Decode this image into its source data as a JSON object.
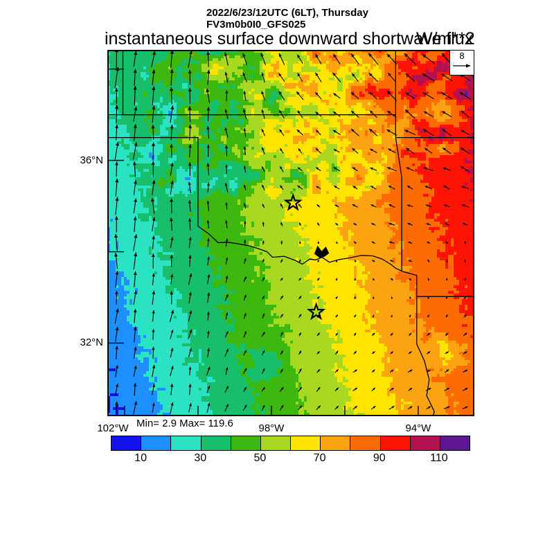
{
  "header": {
    "datetime_line": "2022/6/23/12UTC (6LT), Thursday",
    "model_line": "FV3m0b0I0_GFS025"
  },
  "title": {
    "main": "instantaneous surface downward shortwave flux",
    "units": "W/m**2"
  },
  "stats_label": "Min= 2.9 Max= 119.6",
  "chart_data": {
    "type": "heatmap",
    "title": "instantaneous surface downward shortwave flux",
    "units": "W/m**2",
    "datetime": "2022/6/23/12UTC (6LT), Thursday",
    "model": "FV3m0b0I0_GFS025",
    "min": 2.9,
    "max": 119.6,
    "extent": {
      "lon_min": -102.47,
      "lon_max": -92.47,
      "lat_min": 30.4,
      "lat_max": 38.42
    },
    "axis": {
      "lon_ticks": [
        {
          "lon": -102,
          "label": "102°W"
        },
        {
          "lon": -100,
          "label": ""
        },
        {
          "lon": -98,
          "label": "98°W"
        },
        {
          "lon": -96,
          "label": ""
        },
        {
          "lon": -94,
          "label": "94°W"
        }
      ],
      "lat_ticks": [
        {
          "lat": 38,
          "label": ""
        },
        {
          "lat": 36,
          "label": "36°N"
        },
        {
          "lat": 34,
          "label": ""
        },
        {
          "lat": 32,
          "label": "32°N"
        }
      ]
    },
    "colorbar": {
      "boundaries": [
        10,
        20,
        30,
        40,
        50,
        60,
        70,
        80,
        90,
        100,
        110
      ],
      "colors": [
        "#1212ef",
        "#1e8fff",
        "#2be3c3",
        "#17bf6a",
        "#3cb80f",
        "#a9d821",
        "#ffe400",
        "#fca311",
        "#fd6b03",
        "#fe1405",
        "#b3114f",
        "#5c1692"
      ],
      "tick_labels": [
        "10",
        "30",
        "50",
        "70",
        "90",
        "110"
      ]
    },
    "field": {
      "base": {
        "v0": 8.0,
        "per_deg_lon": 7.7,
        "per_deg_lat": 3.0
      },
      "edge_noise": 3.0,
      "cloud_regions": [
        {
          "name": "north-central-clouds",
          "lon0": -101.9,
          "lon1": -94.45,
          "lat0": 35.0,
          "lat1": 38.9,
          "bias": -7,
          "amp": 27,
          "seed": 7
        },
        {
          "name": "northeast-clouds",
          "lon0": -95.1,
          "lon1": -92.3,
          "lat0": 35.9,
          "lat1": 38.9,
          "bias": -8,
          "amp": 26,
          "seed": 13
        },
        {
          "name": "south-central-cloud",
          "lon0": -98.8,
          "lon1": -97.4,
          "lat0": 31.0,
          "lat1": 32.1,
          "bias": -13,
          "amp": 12,
          "seed": 3
        },
        {
          "name": "southeast-cloud",
          "lon0": -93.9,
          "lon1": -92.3,
          "lat0": 31.2,
          "lat1": 32.4,
          "bias": -14,
          "amp": 18,
          "seed": 5
        }
      ]
    },
    "wind": {
      "reference": 8,
      "reference_label": "8",
      "spacing_px": 26.5,
      "grid_cols": 6,
      "grid_rows": 6,
      "uv": [
        [
          [
            0.5,
            7.5
          ],
          [
            0.5,
            6.5
          ],
          [
            -1.5,
            4.5
          ],
          [
            -3,
            3.5
          ],
          [
            -4,
            4
          ],
          [
            -4.5,
            3.5
          ]
        ],
        [
          [
            0.5,
            7.0
          ],
          [
            0.2,
            6.0
          ],
          [
            -1,
            3.0
          ],
          [
            -2.5,
            2.0
          ],
          [
            -4,
            2.5
          ],
          [
            -4,
            2.5
          ]
        ],
        [
          [
            0.2,
            7.0
          ],
          [
            0.0,
            5.0
          ],
          [
            -0.8,
            2.0
          ],
          [
            -2,
            1.0
          ],
          [
            -2.5,
            1.0
          ],
          [
            -3,
            1.0
          ]
        ],
        [
          [
            0.2,
            6.5
          ],
          [
            0.3,
            4.5
          ],
          [
            0.8,
            1.5
          ],
          [
            0.8,
            0.8
          ],
          [
            -1.5,
            0.6
          ],
          [
            0.5,
            1.0
          ]
        ],
        [
          [
            0.5,
            6.0
          ],
          [
            0.8,
            4.0
          ],
          [
            1.0,
            2.0
          ],
          [
            1.0,
            1.2
          ],
          [
            1.0,
            1.0
          ],
          [
            1.5,
            1.0
          ]
        ],
        [
          [
            0.5,
            5.0
          ],
          [
            0.8,
            4.0
          ],
          [
            1.2,
            2.0
          ],
          [
            1.5,
            1.5
          ],
          [
            2.0,
            1.2
          ],
          [
            2.0,
            1.0
          ]
        ]
      ]
    },
    "geo": {
      "borders": [
        {
          "name": "kansas-south",
          "pts": [
            [
              -102.47,
              37.0
            ],
            [
              -94.615,
              37.0
            ]
          ]
        },
        {
          "name": "colorado-kansas",
          "pts": [
            [
              -102.045,
              38.42
            ],
            [
              -102.045,
              37.0
            ]
          ]
        },
        {
          "name": "texas-ok-panhandle",
          "pts": [
            [
              -102.47,
              36.5
            ],
            [
              -100.0,
              36.5
            ],
            [
              -100.0,
              34.56
            ]
          ]
        },
        {
          "name": "red-river",
          "pts": [
            [
              -100.0,
              34.56
            ],
            [
              -99.72,
              34.4
            ],
            [
              -99.45,
              34.2
            ],
            [
              -99.2,
              34.21
            ],
            [
              -98.95,
              34.18
            ],
            [
              -98.6,
              34.13
            ],
            [
              -98.4,
              34.08
            ],
            [
              -98.12,
              34.0
            ],
            [
              -97.97,
              33.88
            ],
            [
              -97.65,
              33.9
            ],
            [
              -97.35,
              33.81
            ],
            [
              -97.16,
              33.73
            ],
            [
              -96.95,
              33.84
            ],
            [
              -96.8,
              33.82
            ],
            [
              -96.62,
              33.88
            ],
            [
              -96.42,
              33.77
            ],
            [
              -96.15,
              33.83
            ],
            [
              -95.84,
              33.87
            ],
            [
              -95.55,
              33.92
            ],
            [
              -95.24,
              33.91
            ],
            [
              -94.98,
              33.84
            ],
            [
              -94.74,
              33.72
            ],
            [
              -94.615,
              33.64
            ],
            [
              -94.43,
              33.57
            ]
          ]
        },
        {
          "name": "kansas-missouri",
          "pts": [
            [
              -94.615,
              38.42
            ],
            [
              -94.615,
              36.5
            ]
          ]
        },
        {
          "name": "missouri-arkansas",
          "pts": [
            [
              -94.615,
              36.5
            ],
            [
              -92.47,
              36.5
            ]
          ]
        },
        {
          "name": "oklahoma-arkansas",
          "pts": [
            [
              -94.615,
              36.5
            ],
            [
              -94.45,
              35.64
            ],
            [
              -94.45,
              33.57
            ]
          ]
        },
        {
          "name": "texas-arkansas",
          "pts": [
            [
              -94.43,
              33.57
            ],
            [
              -94.04,
              33.48
            ],
            [
              -94.04,
              33.02
            ]
          ]
        },
        {
          "name": "arkansas-louisiana",
          "pts": [
            [
              -94.04,
              33.02
            ],
            [
              -92.47,
              33.02
            ]
          ]
        },
        {
          "name": "texas-louisiana",
          "pts": [
            [
              -94.04,
              33.02
            ],
            [
              -94.04,
              31.98
            ],
            [
              -93.83,
              31.61
            ],
            [
              -93.7,
              31.2
            ],
            [
              -93.77,
              30.85
            ],
            [
              -93.56,
              30.5
            ],
            [
              -93.6,
              30.4
            ]
          ]
        }
      ],
      "lake": {
        "name": "lake-texoma",
        "pts": [
          [
            -96.82,
            33.96
          ],
          [
            -96.74,
            34.12
          ],
          [
            -96.63,
            34.0
          ],
          [
            -96.52,
            34.1
          ],
          [
            -96.44,
            33.97
          ],
          [
            -96.55,
            33.9
          ],
          [
            -96.68,
            33.87
          ]
        ]
      },
      "city_markers": [
        {
          "name": "oklahoma-city",
          "lon": -97.41,
          "lat": 35.07
        },
        {
          "name": "dallas",
          "lon": -96.78,
          "lat": 32.68
        }
      ]
    }
  }
}
